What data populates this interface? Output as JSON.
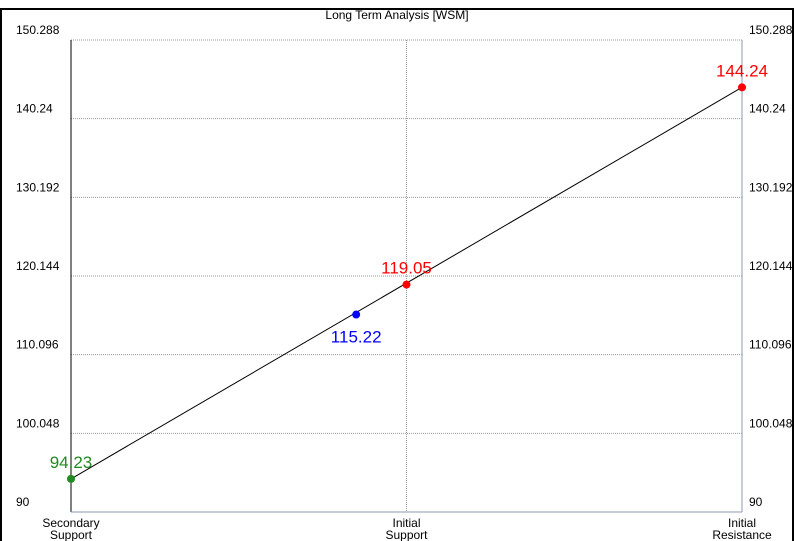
{
  "chart_data": {
    "type": "line",
    "title": "Long Term Analysis [WSM]",
    "ylim": [
      90,
      150.288
    ],
    "y_ticks": [
      "90",
      "100.048",
      "110.096",
      "120.144",
      "130.192",
      "140.24",
      "150.288"
    ],
    "categories": [
      {
        "line1": "Secondary",
        "line2": "Support"
      },
      {
        "line1": "Initial",
        "line2": "Support"
      },
      {
        "line1": "Initial",
        "line2": "Resistance"
      }
    ],
    "grid": true,
    "series": [
      {
        "color": "#000000",
        "points": [
          [
            0,
            94.23
          ],
          [
            2,
            144.24
          ]
        ]
      }
    ],
    "points": [
      {
        "x": 0,
        "y": 94.23,
        "label": "94.23",
        "color": "#228B22",
        "label_pos": "above"
      },
      {
        "x": 0.85,
        "y": 115.22,
        "label": "115.22",
        "color": "#0000FF",
        "label_pos": "below"
      },
      {
        "x": 1,
        "y": 119.05,
        "label": "119.05",
        "color": "#FF0000",
        "label_pos": "above"
      },
      {
        "x": 2,
        "y": 144.24,
        "label": "144.24",
        "color": "#FF0000",
        "label_pos": "above"
      }
    ]
  }
}
